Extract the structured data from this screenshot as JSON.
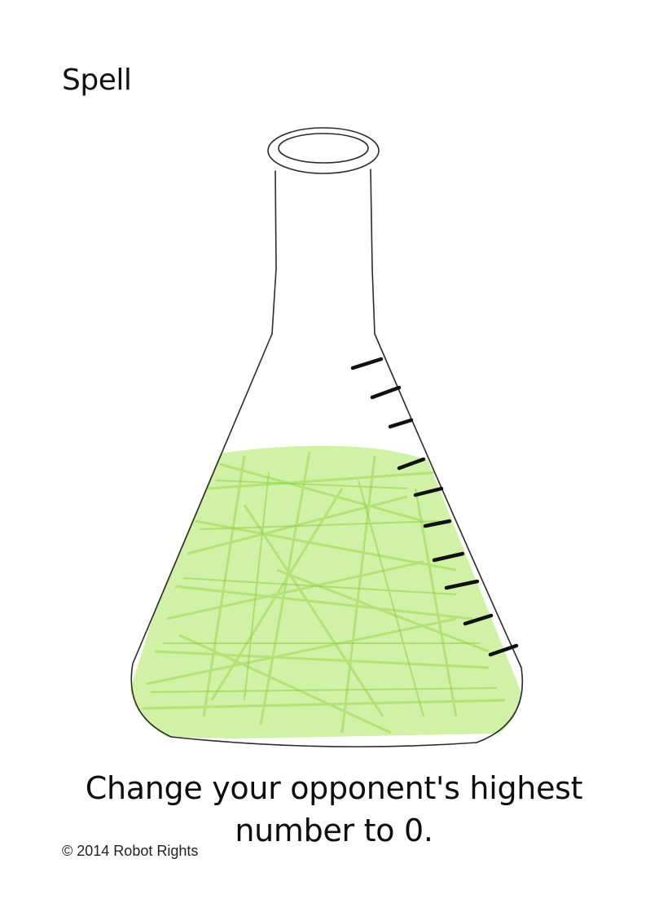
{
  "card": {
    "type_label": "Spell",
    "effect_text": "Change your opponent's highest number to 0.",
    "copyright": "© 2014 Robot Rights"
  },
  "colors": {
    "ink": "#111111",
    "liquid": "#a8e05a",
    "liquid_dark": "#7fcf2a",
    "pencil": "#333333"
  },
  "illustration": {
    "subject": "erlenmeyer-flask-icon",
    "graduation_marks": 10,
    "fill_level": 0.55
  }
}
